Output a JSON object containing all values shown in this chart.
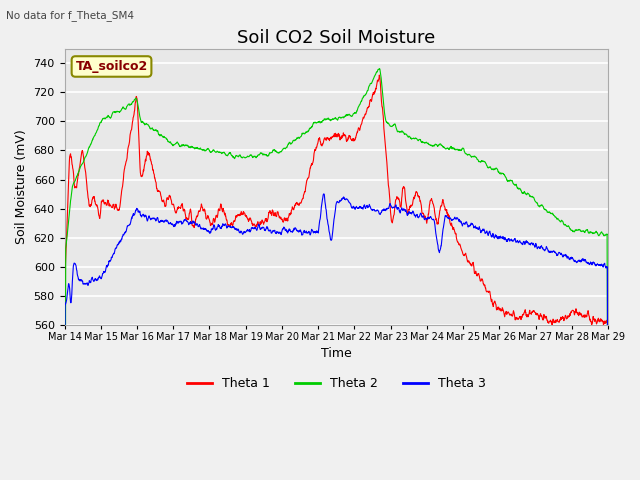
{
  "title": "Soil CO2 Soil Moisture",
  "subtitle": "No data for f_Theta_SM4",
  "ylabel": "Soil Moisture (mV)",
  "xlabel": "Time",
  "legend_box_label": "TA_soilco2",
  "ylim": [
    560,
    750
  ],
  "yticks": [
    560,
    580,
    600,
    620,
    640,
    660,
    680,
    700,
    720,
    740
  ],
  "x_labels": [
    "Mar 14",
    "Mar 15",
    "Mar 16",
    "Mar 17",
    "Mar 18",
    "Mar 19",
    "Mar 20",
    "Mar 21",
    "Mar 22",
    "Mar 23",
    "Mar 24",
    "Mar 25",
    "Mar 26",
    "Mar 27",
    "Mar 28",
    "Mar 29"
  ],
  "legend_colors": [
    "#ff0000",
    "#00cc00",
    "#0000ff"
  ],
  "bg_color": "#e8e8e8",
  "plot_bg_color": "#e8e8e8",
  "grid_color": "#ffffff",
  "title_fontsize": 13,
  "label_fontsize": 9,
  "tick_fontsize": 8
}
